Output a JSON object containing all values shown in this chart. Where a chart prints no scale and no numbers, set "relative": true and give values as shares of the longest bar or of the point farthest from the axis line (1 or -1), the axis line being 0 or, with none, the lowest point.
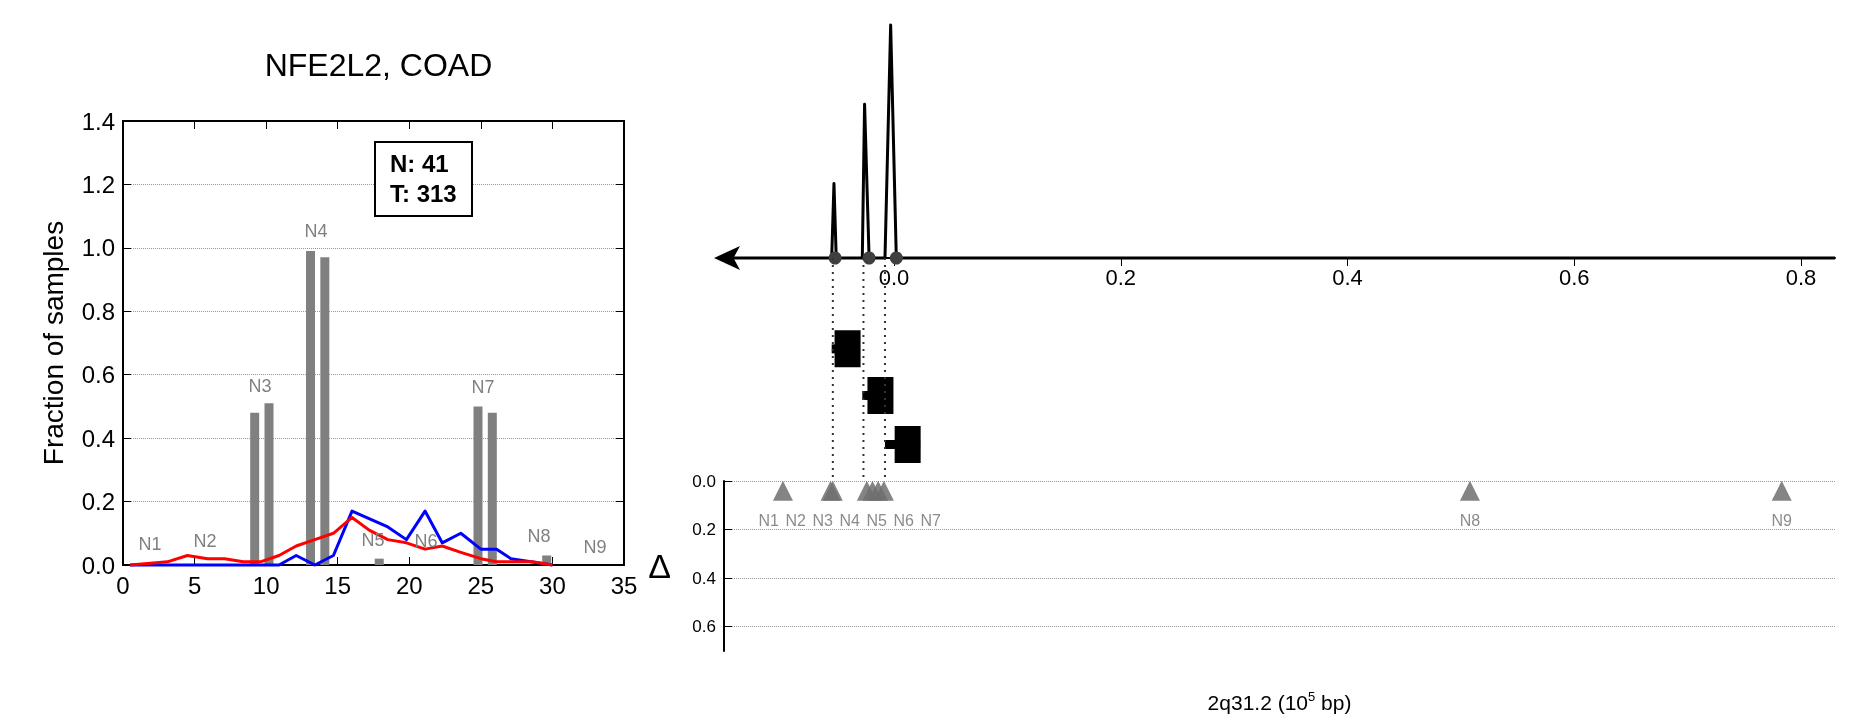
{
  "chart_data": [
    {
      "type": "bar",
      "title": "NFE2L2, COAD",
      "ylabel": "Fraction of samples",
      "xlim": [
        0,
        35
      ],
      "xticks": [
        0,
        5,
        10,
        15,
        20,
        25,
        30,
        35
      ],
      "ylim": [
        0,
        1.4
      ],
      "yticks": [
        {
          "value": 0,
          "label": "0.0"
        },
        {
          "value": 0.2,
          "label": "0.2"
        },
        {
          "value": 0.4,
          "label": "0.4"
        },
        {
          "value": 0.6,
          "label": "0.6"
        },
        {
          "value": 0.8,
          "label": "0.8"
        },
        {
          "value": 1,
          "label": "1.0"
        },
        {
          "value": 1.2,
          "label": "1.2"
        },
        {
          "value": 1.4,
          "label": "1.4"
        }
      ],
      "grid": "y",
      "series": [
        {
          "type": "bar",
          "color": "#808080",
          "x": [
            9.2,
            10.2,
            13.1,
            14.1,
            17.9,
            24.8,
            25.8,
            29.6
          ],
          "values": [
            0.48,
            0.51,
            0.99,
            0.97,
            0.02,
            0.5,
            0.48,
            0.03
          ]
        },
        {
          "type": "line",
          "color": "#0000ff",
          "x": [
            0.5,
            3.1,
            10.9,
            12.1,
            13.4,
            14.7,
            16.0,
            18.5,
            19.8,
            21.1,
            22.3,
            23.6,
            25.0,
            26.1,
            27.1,
            30.0
          ],
          "values": [
            0,
            0,
            0,
            0.03,
            0,
            0.03,
            0.17,
            0.12,
            0.08,
            0.17,
            0.07,
            0.1,
            0.05,
            0.05,
            0.02,
            0
          ]
        },
        {
          "type": "line",
          "color": "#ff0000",
          "x": [
            0.5,
            3.1,
            4.5,
            5.9,
            7.1,
            8.4,
            9.6,
            10.9,
            12.1,
            13.4,
            14.7,
            16.0,
            17.2,
            18.5,
            19.8,
            21.1,
            22.3,
            23.6,
            25.0,
            26.1,
            28.6,
            30.0
          ],
          "values": [
            0,
            0.01,
            0.03,
            0.02,
            0.02,
            0.01,
            0.01,
            0.03,
            0.06,
            0.08,
            0.1,
            0.15,
            0.11,
            0.08,
            0.07,
            0.05,
            0.06,
            0.04,
            0.02,
            0.01,
            0.01,
            0
          ]
        }
      ],
      "annotations": [
        "N: 41",
        "T: 313",
        "N1",
        "N2",
        "N3",
        "N4",
        "N5",
        "N6",
        "N7",
        "N8",
        "N9"
      ]
    },
    {
      "type": "line",
      "relative": true,
      "xlim": [
        -0.15,
        0.83
      ],
      "xticks": [
        {
          "value": 0,
          "label": "0.0"
        },
        0.2,
        0.4,
        0.6,
        0.8
      ],
      "tick_labels": "x",
      "series": [
        {
          "color": "#000000",
          "x": [
            -0.15,
            -0.055,
            -0.053,
            -0.051,
            -0.028,
            -0.026,
            -0.022,
            -0.008,
            -0.003,
            0.002,
            0.83
          ],
          "values": [
            0,
            0,
            0.32,
            0,
            0,
            0.66,
            0,
            0,
            1,
            0,
            0
          ]
        },
        {
          "type": "scatter",
          "color": "#404040",
          "marker": "circle",
          "x": [
            -0.052,
            -0.022,
            0.002
          ],
          "values": [
            0,
            0,
            0
          ]
        },
        {
          "type": "scatter",
          "color": "#000000",
          "marker": "square",
          "x": [
            -0.041,
            -0.012,
            0.012
          ],
          "values": [
            -0.39,
            -0.59,
            -0.8
          ],
          "xerrors": [
            [
              -0.055,
              -0.03
            ],
            [
              -0.028,
              -0.001
            ],
            [
              -0.008,
              0.023
            ]
          ]
        }
      ],
      "ref_lines": [
        {
          "axis": "x",
          "value": -0.054,
          "line_style": "dotted",
          "color": "#333333"
        },
        {
          "axis": "x",
          "value": -0.027,
          "line_style": "dotted",
          "color": "#333333"
        },
        {
          "axis": "x",
          "value": -0.008,
          "line_style": "dotted",
          "color": "#333333"
        }
      ]
    },
    {
      "type": "scatter",
      "xlabel": "2q31.2 (10$^{5}$ bp)",
      "ylabel": "Δ",
      "xlim": [
        -0.15,
        0.83
      ],
      "ylim": [
        0.7,
        0
      ],
      "yticks": [
        {
          "value": 0,
          "label": "0.0"
        },
        0.2,
        0.4,
        0.6
      ],
      "tick_labels": "y",
      "grid": "y",
      "marker": "triangle",
      "x": [
        -0.098,
        -0.056,
        -0.054,
        -0.024,
        -0.019,
        -0.014,
        -0.009,
        0.508,
        0.783
      ],
      "values": [
        0.04,
        0.04,
        0.04,
        0.04,
        0.04,
        0.04,
        0.04,
        0.04,
        0.04
      ],
      "color": "#6e6e6e",
      "value_labels": [
        "N1",
        "N2",
        "N3",
        "N4",
        "N5",
        "N6",
        "N7",
        "N8",
        "N9"
      ]
    }
  ]
}
